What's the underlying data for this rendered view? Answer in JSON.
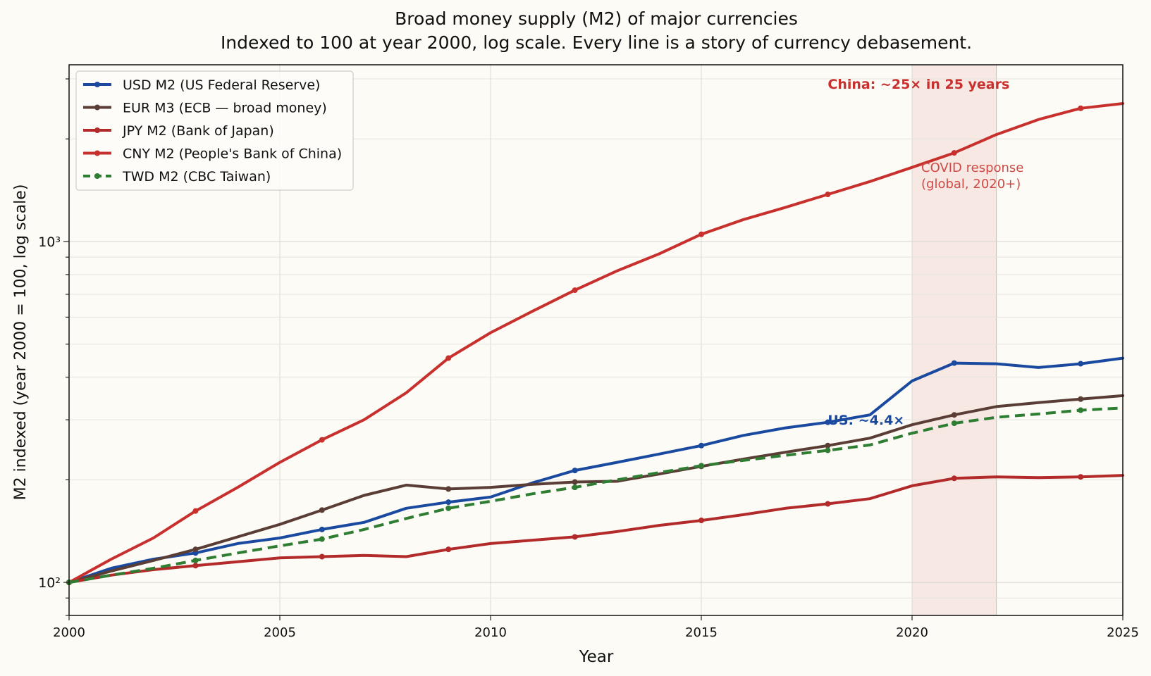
{
  "chart_data": {
    "type": "line",
    "title": "Broad money supply (M2) of major currencies",
    "subtitle": "Indexed to 100 at year 2000, log scale. Every line is a story of currency debasement.",
    "xlabel": "Year",
    "ylabel": "M2 indexed (year 2000 = 100, log scale)",
    "xlim": [
      2000,
      2025
    ],
    "ylim": [
      80,
      3300
    ],
    "yscale": "log",
    "grid": true,
    "legend_position": "top-left",
    "x_ticks": [
      "2000",
      "2005",
      "2010",
      "2015",
      "2020",
      "2025"
    ],
    "y_ticks": [
      {
        "value": 100,
        "label": "10²"
      },
      {
        "value": 1000,
        "label": "10³"
      }
    ],
    "series": [
      {
        "name": "USD M2 (US Federal Reserve)",
        "color": "#1a4aa0",
        "style": "solid",
        "x": [
          2000,
          2001,
          2002,
          2003,
          2004,
          2005,
          2006,
          2007,
          2008,
          2009,
          2010,
          2011,
          2012,
          2013,
          2014,
          2015,
          2016,
          2017,
          2018,
          2019,
          2020,
          2021,
          2022,
          2023,
          2024,
          2025
        ],
        "y": [
          100,
          110,
          117,
          122,
          130,
          135,
          143,
          150,
          165,
          172,
          178,
          196,
          213,
          225,
          238,
          252,
          270,
          284,
          295,
          310,
          390,
          440,
          438,
          427,
          438,
          455
        ],
        "marker_x": [
          2000,
          2003,
          2006,
          2009,
          2012,
          2015,
          2018,
          2021,
          2024
        ]
      },
      {
        "name": "EUR M3 (ECB — broad money)",
        "color": "#5a3e36",
        "style": "solid",
        "x": [
          2000,
          2001,
          2002,
          2003,
          2004,
          2005,
          2006,
          2007,
          2008,
          2009,
          2010,
          2011,
          2012,
          2013,
          2014,
          2015,
          2016,
          2017,
          2018,
          2019,
          2020,
          2021,
          2022,
          2023,
          2024,
          2025
        ],
        "y": [
          100,
          108,
          116,
          125,
          136,
          148,
          163,
          180,
          193,
          188,
          190,
          194,
          197,
          198,
          208,
          219,
          230,
          241,
          252,
          265,
          290,
          310,
          328,
          337,
          345,
          353
        ],
        "marker_x": [
          2000,
          2003,
          2006,
          2009,
          2012,
          2015,
          2018,
          2021,
          2024
        ]
      },
      {
        "name": "JPY M2 (Bank of Japan)",
        "color": "#b22a2a",
        "style": "solid",
        "x": [
          2000,
          2001,
          2002,
          2003,
          2004,
          2005,
          2006,
          2007,
          2008,
          2009,
          2010,
          2011,
          2012,
          2013,
          2014,
          2015,
          2016,
          2017,
          2018,
          2019,
          2020,
          2021,
          2022,
          2023,
          2024,
          2025
        ],
        "y": [
          100,
          105,
          109,
          112,
          115,
          118,
          119,
          120,
          119,
          125,
          130,
          133,
          136,
          141,
          147,
          152,
          158,
          165,
          170,
          176,
          192,
          202,
          204,
          203,
          204,
          206
        ],
        "marker_x": [
          2000,
          2003,
          2006,
          2009,
          2012,
          2015,
          2018,
          2021,
          2024
        ]
      },
      {
        "name": "CNY M2 (People's Bank of China)",
        "color": "#c8302e",
        "style": "solid",
        "x": [
          2000,
          2001,
          2002,
          2003,
          2004,
          2005,
          2006,
          2007,
          2008,
          2009,
          2010,
          2011,
          2012,
          2013,
          2014,
          2015,
          2016,
          2017,
          2018,
          2019,
          2020,
          2021,
          2022,
          2023,
          2024,
          2025
        ],
        "y": [
          100,
          117,
          135,
          162,
          190,
          225,
          262,
          300,
          360,
          455,
          540,
          625,
          720,
          820,
          920,
          1050,
          1160,
          1260,
          1375,
          1500,
          1650,
          1820,
          2060,
          2280,
          2460,
          2540
        ],
        "marker_x": [
          2000,
          2003,
          2006,
          2009,
          2012,
          2015,
          2018,
          2021,
          2024
        ]
      },
      {
        "name": "TWD M2 (CBC Taiwan)",
        "color": "#2e7d32",
        "style": "dashed",
        "x": [
          2000,
          2001,
          2002,
          2003,
          2004,
          2005,
          2006,
          2007,
          2008,
          2009,
          2010,
          2011,
          2012,
          2013,
          2014,
          2015,
          2016,
          2017,
          2018,
          2019,
          2020,
          2021,
          2022,
          2023,
          2024,
          2025
        ],
        "y": [
          100,
          105,
          110,
          116,
          122,
          128,
          134,
          143,
          154,
          165,
          173,
          182,
          190,
          200,
          210,
          220,
          228,
          236,
          244,
          253,
          274,
          293,
          305,
          312,
          320,
          325
        ],
        "marker_x": [
          2000,
          2003,
          2006,
          2009,
          2012,
          2015,
          2018,
          2021,
          2024
        ]
      }
    ],
    "shaded_region": {
      "x": [
        2020,
        2022
      ],
      "color": "#f3d9d3",
      "label_line1": "COVID response",
      "label_line2": "(global, 2020+)"
    },
    "annotations": [
      {
        "text": "China: ~25× in 25 years",
        "x": 2018,
        "y": 2900,
        "color": "#c8302e",
        "bold": true
      },
      {
        "text": "US: ~4.4×",
        "x": 2018,
        "y": 300,
        "color": "#1a4aa0",
        "bold": true
      }
    ]
  }
}
